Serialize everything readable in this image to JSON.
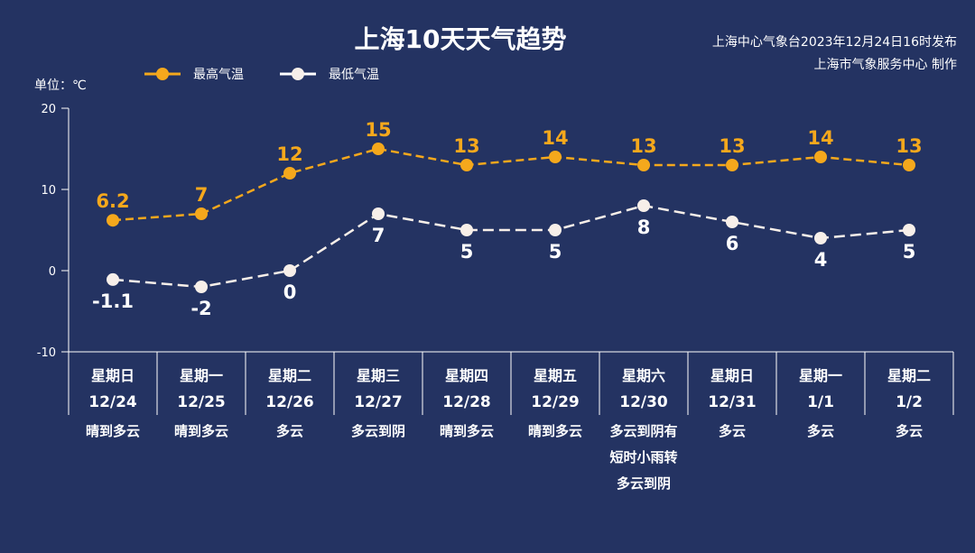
{
  "chart_data": {
    "type": "line",
    "title": "上海10天天气趋势",
    "publisher": "上海中心气象台2023年12月24日16时发布",
    "producer": "上海市气象服务中心 制作",
    "unit_label": "单位：℃",
    "ylim": [
      -10,
      20
    ],
    "yticks": [
      "20",
      "10",
      "0",
      "-10"
    ],
    "ytick_values": [
      20,
      10,
      0,
      -10
    ],
    "categories": [
      {
        "weekday": "星期日",
        "date": "12/24",
        "weather": [
          "晴到多云"
        ]
      },
      {
        "weekday": "星期一",
        "date": "12/25",
        "weather": [
          "晴到多云"
        ]
      },
      {
        "weekday": "星期二",
        "date": "12/26",
        "weather": [
          "多云"
        ]
      },
      {
        "weekday": "星期三",
        "date": "12/27",
        "weather": [
          "多云到阴"
        ]
      },
      {
        "weekday": "星期四",
        "date": "12/28",
        "weather": [
          "晴到多云"
        ]
      },
      {
        "weekday": "星期五",
        "date": "12/29",
        "weather": [
          "晴到多云"
        ]
      },
      {
        "weekday": "星期六",
        "date": "12/30",
        "weather": [
          "多云到阴有",
          "短时小雨转",
          "多云到阴"
        ]
      },
      {
        "weekday": "星期日",
        "date": "12/31",
        "weather": [
          "多云"
        ]
      },
      {
        "weekday": "星期一",
        "date": "1/1",
        "weather": [
          "多云"
        ]
      },
      {
        "weekday": "星期二",
        "date": "1/2",
        "weather": [
          "多云"
        ]
      }
    ],
    "series": [
      {
        "name": "最高气温",
        "color": "#f5a81c",
        "values": [
          6.2,
          7,
          12,
          15,
          13,
          14,
          13,
          13,
          14,
          13
        ],
        "labels": [
          "6.2",
          "7",
          "12",
          "15",
          "13",
          "14",
          "13",
          "13",
          "14",
          "13"
        ]
      },
      {
        "name": "最低气温",
        "color": "#f7efe9",
        "values": [
          -1.1,
          -2,
          0,
          7,
          5,
          5,
          8,
          6,
          4,
          5
        ],
        "labels": [
          "-1.1",
          "-2",
          "0",
          "7",
          "5",
          "5",
          "8",
          "6",
          "4",
          "5"
        ]
      }
    ],
    "legend_position": "top-left"
  }
}
